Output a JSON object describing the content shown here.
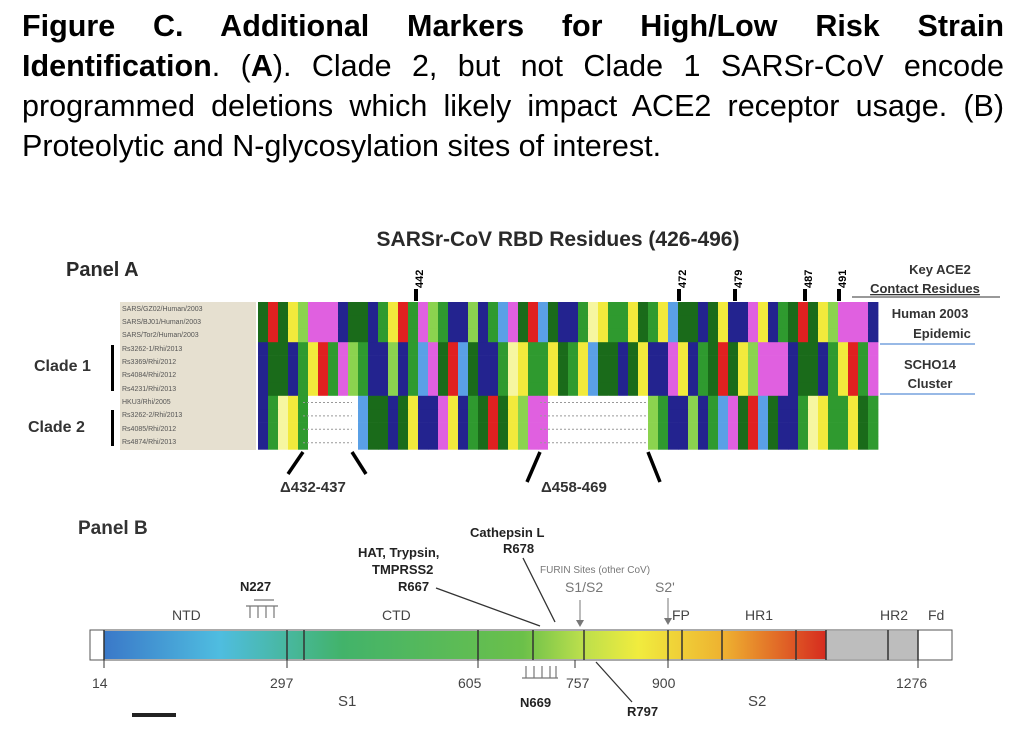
{
  "caption": {
    "figure_label": "Figure C. Additional Markers for High/Low Risk Strain Identification",
    "after_label": ". (",
    "panel_a_letter": "A",
    "text_a": "). Clade 2, but not Clade 1 SARSr-CoV encode programmed deletions which likely impact ACE2 receptor usage. (B) Proteolytic and N-glycosylation sites of interest."
  },
  "panel_a": {
    "title": "SARSr-CoV RBD Residues (426-496)",
    "label": "Panel A",
    "residue_marks": [
      "442",
      "472",
      "479",
      "487",
      "491"
    ],
    "legend_key_line1": "Key ACE2",
    "legend_key_line2": "Contact Residues",
    "legend_human_line1": "Human 2003",
    "legend_human_line2": "Epidemic",
    "legend_scho_line1": "SCHO14",
    "legend_scho_line2": "Cluster",
    "clade1": "Clade 1",
    "clade2": "Clade 2",
    "deletion1": "Δ432-437",
    "deletion2": "Δ458-469",
    "sequences": [
      "SARS/GZ02/Human/2003",
      "SARS/BJ01/Human/2003",
      "SARS/Tor2/Human/2003",
      "Rs3262-1/Rhi/2013",
      "Rs3369/Rhi/2012",
      "Rs4084/Rhi/2012",
      "Rs4231/Rhi/2013",
      "HKU3/Rhi/2005",
      "Rs3262-2/Rhi/2013",
      "Rs4085/Rhi/2012",
      "Rs4874/Rhi/2013"
    ]
  },
  "panel_b": {
    "label": "Panel B",
    "cathepsin": "Cathepsin L",
    "cathepsin_site": "R678",
    "hat_line1": "HAT, Trypsin,",
    "hat_line2": "TMPRSS2",
    "hat_site": "R667",
    "furin": "FURIN Sites (other CoV)",
    "s1s2": "S1/S2",
    "s2prime": "S2'",
    "n227": "N227",
    "domains": {
      "ntd": "NTD",
      "ctd": "CTD",
      "fp": "FP",
      "hr1": "HR1",
      "hr2": "HR2",
      "fd": "Fd"
    },
    "ticks": [
      "14",
      "297",
      "605",
      "757",
      "900",
      "1276"
    ],
    "subunits": {
      "s1": "S1",
      "s2": "S2"
    },
    "n669": "N669",
    "r797": "R797"
  },
  "colors": {
    "A": "#2f9a2f",
    "V": "#23238f",
    "L": "#f2ea3c",
    "T": "#e02020",
    "G": "#e060e0",
    "D": "#5aa0e6",
    "S": "#8bd34f",
    "P": "#f6f6a0",
    "N": "#1a6b1a"
  }
}
